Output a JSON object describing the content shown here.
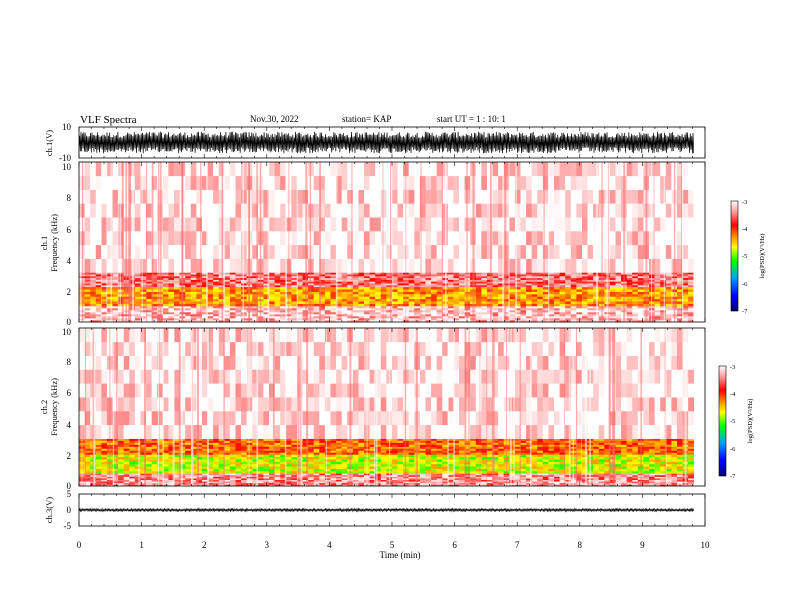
{
  "header": {
    "title": "VLF Spectra",
    "date": "Nov.30, 2022",
    "station": "station= KAP",
    "start": "start  UT =   1 : 10: 1"
  },
  "chart_data": [
    {
      "type": "line",
      "panel": "ch1-waveform",
      "ylabel": "ch.1(V)",
      "ylim": [
        -10,
        10
      ],
      "y_ticks": [
        "10",
        "-10"
      ],
      "xlim": [
        0,
        10
      ],
      "x_ticks": [
        0,
        1,
        2,
        3,
        4,
        5,
        6,
        7,
        8,
        9,
        10
      ],
      "data_extent_x": [
        0,
        9.82
      ],
      "approx_envelope": [
        -7,
        7
      ]
    },
    {
      "type": "heatmap",
      "panel": "ch1-spectrogram",
      "ylabel": "ch.1\nFrequency (kHz)",
      "ylim": [
        0,
        10
      ],
      "y_ticks": [
        "0",
        "2",
        "4",
        "6",
        "8",
        "10"
      ],
      "xlim": [
        0,
        10
      ],
      "data_extent_x": [
        0,
        9.82
      ],
      "bands_khz": [
        {
          "range": [
            0.0,
            1.0
          ],
          "log_psd": -3.3
        },
        {
          "range": [
            1.0,
            2.2
          ],
          "log_psd": -4.6
        },
        {
          "range": [
            2.2,
            3.1
          ],
          "log_psd": -3.6
        },
        {
          "range": [
            3.1,
            10.0
          ],
          "log_psd": -3.1
        }
      ],
      "colorbar": {
        "label": "log(PSD)(V²/Hz)",
        "min": -7,
        "max": -3,
        "ticks": [
          "-3",
          "-4",
          "-5",
          "-6",
          "-7"
        ]
      }
    },
    {
      "type": "heatmap",
      "panel": "ch2-spectrogram",
      "ylabel": "ch.2\nFrequency (kHz)",
      "ylim": [
        0,
        10
      ],
      "y_ticks": [
        "0",
        "2",
        "4",
        "6",
        "8",
        "10"
      ],
      "xlim": [
        0,
        10
      ],
      "data_extent_x": [
        0,
        9.82
      ],
      "bands_khz": [
        {
          "range": [
            0.0,
            0.8
          ],
          "log_psd": -3.5
        },
        {
          "range": [
            0.8,
            2.0
          ],
          "log_psd": -5.0
        },
        {
          "range": [
            2.0,
            3.0
          ],
          "log_psd": -4.4
        },
        {
          "range": [
            3.0,
            10.0
          ],
          "log_psd": -3.1
        }
      ],
      "colorbar": {
        "label": "log(PSD)(V²/Hz)",
        "min": -7,
        "max": -3,
        "ticks": [
          "-3",
          "-4",
          "-5",
          "-6",
          "-7"
        ]
      }
    },
    {
      "type": "line",
      "panel": "ch3-waveform",
      "ylabel": "ch.3(V)",
      "ylim": [
        -5,
        5
      ],
      "y_ticks": [
        "5",
        "0",
        "-5"
      ],
      "xlim": [
        0,
        10
      ],
      "xlabel": "Time (min)",
      "x_ticks": [
        "0",
        "1",
        "2",
        "3",
        "4",
        "5",
        "6",
        "7",
        "8",
        "9",
        "10"
      ],
      "data_extent_x": [
        0,
        9.82
      ],
      "approx_envelope": [
        -0.4,
        0.4
      ]
    }
  ],
  "colors": {
    "waveform": "#000000",
    "background": "#ffffff",
    "colormap": [
      "#00006e",
      "#0000ff",
      "#00a0ff",
      "#00ff00",
      "#ffff00",
      "#ff8800",
      "#ff0000",
      "#ff9999",
      "#ffffff"
    ]
  }
}
